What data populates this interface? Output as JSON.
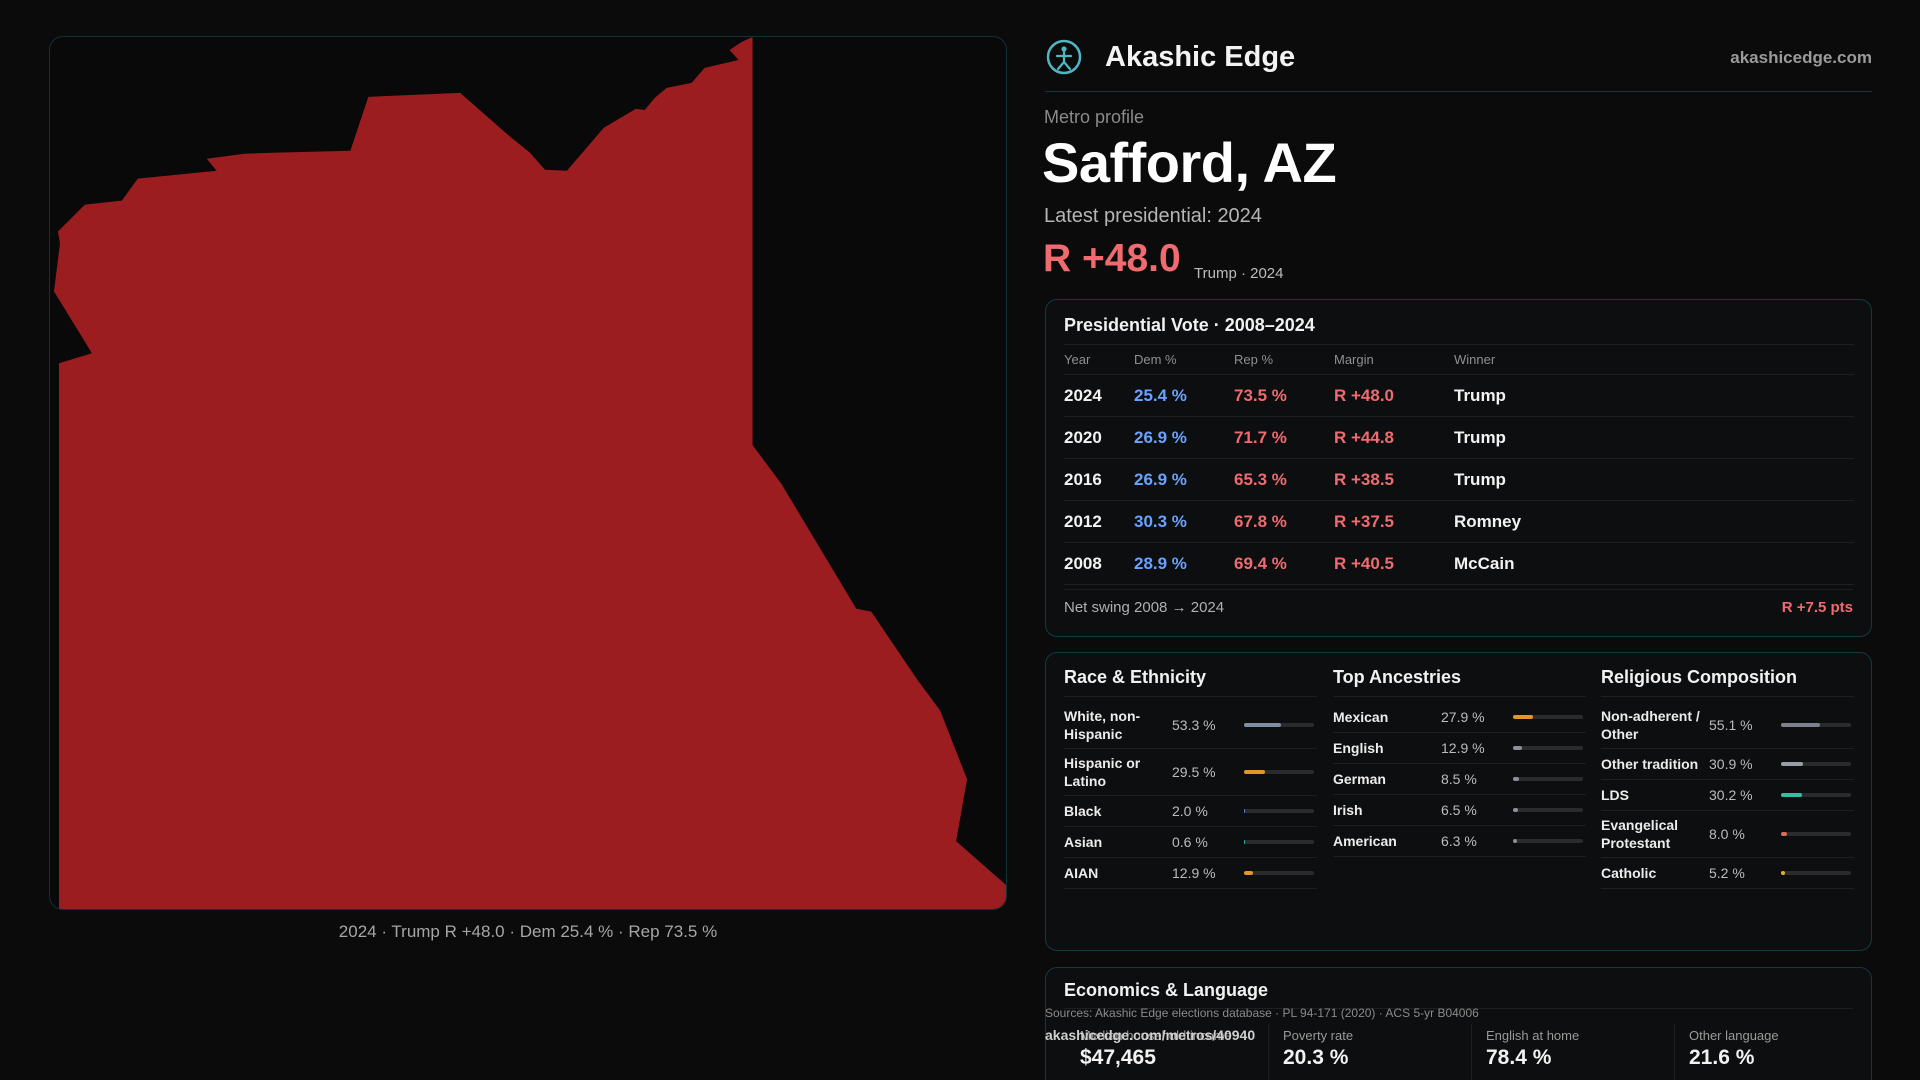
{
  "map": {
    "caption": "2024 · Trump R +48.0 · Dem 25.4 % · Rep 73.5 %",
    "fill_color": "#9c1d20"
  },
  "header": {
    "brand_name": "Akashic Edge",
    "brand_url": "akashicedge.com",
    "logo_icon": "compass-person-icon"
  },
  "profile": {
    "eyebrow": "Metro profile",
    "title": "Safford, AZ",
    "subtitle": "Latest presidential: 2024",
    "margin": "R +48.0",
    "margin_note": "Trump · 2024"
  },
  "vote_table": {
    "title": "Presidential Vote · 2008–2024",
    "headers": {
      "year": "Year",
      "dem": "Dem %",
      "rep": "Rep %",
      "margin": "Margin",
      "winner": "Winner"
    },
    "rows": [
      {
        "year": "2024",
        "dem": "25.4 %",
        "rep": "73.5 %",
        "margin": "R +48.0",
        "winner": "Trump"
      },
      {
        "year": "2020",
        "dem": "26.9 %",
        "rep": "71.7 %",
        "margin": "R +44.8",
        "winner": "Trump"
      },
      {
        "year": "2016",
        "dem": "26.9 %",
        "rep": "65.3 %",
        "margin": "R +38.5",
        "winner": "Trump"
      },
      {
        "year": "2012",
        "dem": "30.3 %",
        "rep": "67.8 %",
        "margin": "R +37.5",
        "winner": "Romney"
      },
      {
        "year": "2008",
        "dem": "28.9 %",
        "rep": "69.4 %",
        "margin": "R +40.5",
        "winner": "McCain"
      }
    ],
    "swing_label": "Net swing 2008 → 2024",
    "swing_value": "R +7.5 pts"
  },
  "race": {
    "title": "Race & Ethnicity",
    "items": [
      {
        "label": "White, non-Hispanic",
        "value": "53.3 %",
        "fraction": 0.533,
        "color": "#7f8ea3"
      },
      {
        "label": "Hispanic or Latino",
        "value": "29.5 %",
        "fraction": 0.295,
        "color": "#e0962a"
      },
      {
        "label": "Black",
        "value": "2.0 %",
        "fraction": 0.02,
        "color": "#6a6fd8"
      },
      {
        "label": "Asian",
        "value": "0.6 %",
        "fraction": 0.006,
        "color": "#3aa6a0"
      },
      {
        "label": "AIAN",
        "value": "12.9 %",
        "fraction": 0.129,
        "color": "#e0962a"
      }
    ]
  },
  "ancestry": {
    "title": "Top Ancestries",
    "items": [
      {
        "label": "Mexican",
        "value": "27.9 %",
        "fraction": 0.279,
        "color": "#e0962a"
      },
      {
        "label": "English",
        "value": "12.9 %",
        "fraction": 0.129,
        "color": "#8a8f99"
      },
      {
        "label": "German",
        "value": "8.5 %",
        "fraction": 0.085,
        "color": "#8a8f99"
      },
      {
        "label": "Irish",
        "value": "6.5 %",
        "fraction": 0.065,
        "color": "#8a8f99"
      },
      {
        "label": "American",
        "value": "6.3 %",
        "fraction": 0.063,
        "color": "#8a8f99"
      }
    ]
  },
  "religion": {
    "title": "Religious Composition",
    "items": [
      {
        "label": "Non-adherent / Other",
        "value": "55.1 %",
        "fraction": 0.551,
        "color": "#7d8189"
      },
      {
        "label": "Other tradition",
        "value": "30.9 %",
        "fraction": 0.309,
        "color": "#9a9ea6"
      },
      {
        "label": "LDS",
        "value": "30.2 %",
        "fraction": 0.302,
        "color": "#2cc3a5"
      },
      {
        "label": "Evangelical Protestant",
        "value": "8.0 %",
        "fraction": 0.08,
        "color": "#e06a5a"
      },
      {
        "label": "Catholic",
        "value": "5.2 %",
        "fraction": 0.052,
        "color": "#e0b22a"
      }
    ]
  },
  "economics": {
    "title": "Economics & Language",
    "metrics": [
      {
        "label": "Median household income",
        "value": "$47,465"
      },
      {
        "label": "Poverty rate",
        "value": "20.3 %"
      },
      {
        "label": "English at home",
        "value": "78.4 %"
      },
      {
        "label": "Other language",
        "value": "21.6 %"
      }
    ]
  },
  "footer": {
    "sources": "Sources: Akashic Edge elections database · PL 94-171 (2020) · ACS 5-yr B04006",
    "url": "akashicedge.com/metros/40940"
  }
}
